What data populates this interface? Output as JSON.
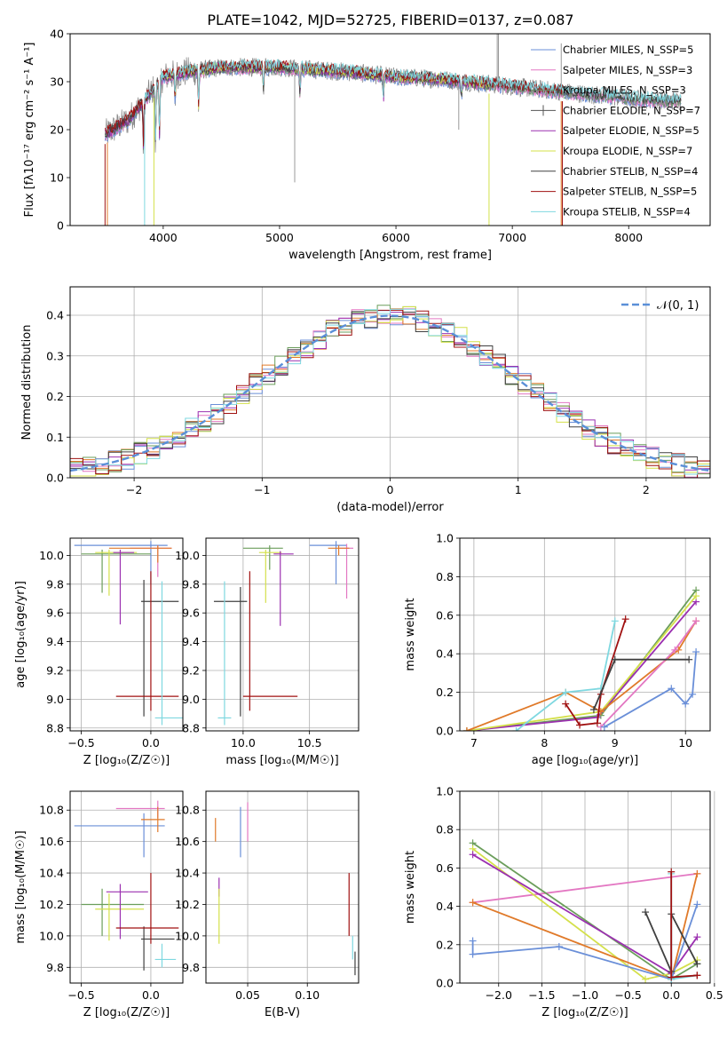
{
  "figure_title": "PLATE=1042, MJD=52725, FIBERID=0137, z=0.087",
  "colors": {
    "chabrier_miles": "#6a8fd8",
    "salpeter_miles": "#e377c2",
    "kroupa_miles": "#6b8e6b",
    "chabrier_elodie": "#555555",
    "salpeter_elodie": "#9b30b0",
    "kroupa_elodie": "#d4e04a",
    "chabrier_stelib": "#404040",
    "salpeter_stelib": "#a01010",
    "kroupa_stelib": "#7fd8e0",
    "orange": "#e07a2a",
    "green": "#6b9e5b",
    "gridline": "#b0b0b0",
    "normal_curve": "#5a8fd8"
  },
  "chart_data": [
    {
      "id": "spectrum",
      "type": "line",
      "title": "PLATE=1042, MJD=52725, FIBERID=0137, z=0.087",
      "xlabel": "wavelength [Angstrom, rest frame]",
      "ylabel": "Flux [fλ10⁻¹⁷ erg cm⁻² s⁻¹ A⁻¹]",
      "xlim": [
        3200,
        8700
      ],
      "ylim": [
        0,
        40
      ],
      "xticks": [
        4000,
        5000,
        6000,
        7000,
        8000
      ],
      "yticks": [
        0,
        10,
        20,
        30,
        40
      ],
      "grid": false,
      "legend_position": "top-right",
      "legend": [
        "Chabrier MILES, N_SSP=5",
        "Salpeter MILES, N_SSP=3",
        "Kroupa MILES, N_SSP=3",
        "Chabrier ELODIE, N_SSP=7",
        "Salpeter ELODIE, N_SSP=5",
        "Kroupa ELODIE, N_SSP=7",
        "Chabrier STELIB, N_SSP=4",
        "Salpeter STELIB, N_SSP=5",
        "Kroupa STELIB, N_SSP=4"
      ],
      "legend_keys": [
        "chabrier_miles",
        "salpeter_miles",
        "kroupa_miles",
        "chabrier_elodie",
        "salpeter_elodie",
        "kroupa_elodie",
        "chabrier_stelib",
        "salpeter_stelib",
        "kroupa_stelib"
      ],
      "continuum": {
        "x": [
          3500,
          3700,
          3900,
          4000,
          4200,
          4500,
          4800,
          5000,
          5300,
          5600,
          6000,
          6400,
          6800,
          7200,
          7600,
          8000,
          8400
        ],
        "y": [
          19,
          22,
          28,
          31,
          32,
          33,
          33,
          33,
          32.5,
          32,
          31,
          30.5,
          29.5,
          28.5,
          27.5,
          26.5,
          26
        ]
      },
      "absorption_lines": [
        {
          "x": 3830,
          "depth": 10
        },
        {
          "x": 3934,
          "depth": 14
        },
        {
          "x": 3968,
          "depth": 12
        },
        {
          "x": 4102,
          "depth": 6
        },
        {
          "x": 4304,
          "depth": 8
        },
        {
          "x": 4861,
          "depth": 5
        },
        {
          "x": 5175,
          "depth": 6
        },
        {
          "x": 5893,
          "depth": 5
        },
        {
          "x": 6563,
          "depth": 3
        }
      ]
    },
    {
      "id": "residuals",
      "type": "bar",
      "xlabel": "(data-model)/error",
      "ylabel": "Normed distribution",
      "xlim": [
        -2.5,
        2.5
      ],
      "ylim": [
        0,
        0.47
      ],
      "xticks": [
        -2,
        -1,
        0,
        1,
        2
      ],
      "yticks": [
        0.0,
        0.1,
        0.2,
        0.3,
        0.4
      ],
      "grid": true,
      "legend_position": "top-right",
      "legend": [
        "𝒩(0, 1)"
      ],
      "bin_width": 0.1
    },
    {
      "id": "age_vs_Z",
      "type": "scatter",
      "xlabel": "Z [log₁₀(Z/Z☉)]",
      "ylabel": "age  [log₁₀(age/yr)]",
      "xlim": [
        -0.58,
        0.23
      ],
      "ylim": [
        8.78,
        10.12
      ],
      "xticks": [
        -0.5,
        0.0
      ],
      "yticks": [
        8.8,
        9.0,
        9.2,
        9.4,
        9.6,
        9.8,
        10.0
      ],
      "grid": true,
      "errorbars": [
        {
          "key": "chabrier_miles",
          "x": 0.0,
          "xerr_lo": 0.55,
          "xerr_hi": 0.12,
          "y": 10.07,
          "yerr_lo": 0.27,
          "yerr_hi": 0.03
        },
        {
          "key": "salpeter_miles",
          "x": 0.05,
          "xerr_lo": 0.2,
          "xerr_hi": 0.1,
          "y": 10.05,
          "yerr_lo": 0.2,
          "yerr_hi": 0.02
        },
        {
          "key": "orange",
          "x": 0.05,
          "xerr_lo": 0.35,
          "xerr_hi": 0.1,
          "y": 10.05,
          "yerr_lo": 0.1,
          "yerr_hi": 0.02
        },
        {
          "key": "green",
          "x": -0.35,
          "xerr_lo": 0.15,
          "xerr_hi": 0.35,
          "y": 10.01,
          "yerr_lo": 0.27,
          "yerr_hi": 0.03
        },
        {
          "key": "kroupa_elodie",
          "x": -0.3,
          "xerr_lo": 0.1,
          "xerr_hi": 0.2,
          "y": 10.02,
          "yerr_lo": 0.3,
          "yerr_hi": 0.02
        },
        {
          "key": "salpeter_elodie",
          "x": -0.22,
          "xerr_lo": 0.05,
          "xerr_hi": 0.1,
          "y": 10.02,
          "yerr_lo": 0.5,
          "yerr_hi": 0.02
        },
        {
          "key": "chabrier_stelib",
          "x": -0.05,
          "xerr_lo": 0.02,
          "xerr_hi": 0.25,
          "y": 9.68,
          "yerr_lo": 0.8,
          "yerr_hi": 0.15
        },
        {
          "key": "salpeter_stelib",
          "x": 0.0,
          "xerr_lo": 0.25,
          "xerr_hi": 0.2,
          "y": 9.02,
          "yerr_lo": 0.1,
          "yerr_hi": 0.87
        },
        {
          "key": "kroupa_stelib",
          "x": 0.08,
          "xerr_lo": 0.05,
          "xerr_hi": 0.18,
          "y": 8.87,
          "yerr_lo": 0.05,
          "yerr_hi": 0.95
        }
      ]
    },
    {
      "id": "age_vs_mass",
      "type": "scatter",
      "xlabel": "mass [log₁₀(M/M☉)]",
      "ylabel": "",
      "xlim": [
        9.72,
        10.87
      ],
      "ylim": [
        8.78,
        10.12
      ],
      "xticks": [
        10.0,
        10.5
      ],
      "yticks": [
        8.8,
        9.0,
        9.2,
        9.4,
        9.6,
        9.8,
        10.0
      ],
      "grid": true,
      "errorbars": [
        {
          "key": "chabrier_miles",
          "x": 10.7,
          "xerr_lo": 0.2,
          "xerr_hi": 0.08,
          "y": 10.07,
          "yerr_lo": 0.27,
          "yerr_hi": 0.03
        },
        {
          "key": "salpeter_miles",
          "x": 10.78,
          "xerr_lo": 0.05,
          "xerr_hi": 0.05,
          "y": 10.05,
          "yerr_lo": 0.35,
          "yerr_hi": 0.03
        },
        {
          "key": "orange",
          "x": 10.72,
          "xerr_lo": 0.08,
          "xerr_hi": 0.08,
          "y": 10.05,
          "yerr_lo": 0.05,
          "yerr_hi": 0.02
        },
        {
          "key": "green",
          "x": 10.2,
          "xerr_lo": 0.2,
          "xerr_hi": 0.1,
          "y": 10.05,
          "yerr_lo": 0.15,
          "yerr_hi": 0.02
        },
        {
          "key": "kroupa_elodie",
          "x": 10.17,
          "xerr_lo": 0.05,
          "xerr_hi": 0.12,
          "y": 10.02,
          "yerr_lo": 0.35,
          "yerr_hi": 0.02
        },
        {
          "key": "salpeter_elodie",
          "x": 10.28,
          "xerr_lo": 0.05,
          "xerr_hi": 0.1,
          "y": 10.01,
          "yerr_lo": 0.5,
          "yerr_hi": 0.02
        },
        {
          "key": "chabrier_stelib",
          "x": 9.98,
          "xerr_lo": 0.2,
          "xerr_hi": 0.05,
          "y": 9.68,
          "yerr_lo": 0.8,
          "yerr_hi": 0.1
        },
        {
          "key": "salpeter_stelib",
          "x": 10.05,
          "xerr_lo": 0.05,
          "xerr_hi": 0.36,
          "y": 9.02,
          "yerr_lo": 0.1,
          "yerr_hi": 0.87
        },
        {
          "key": "kroupa_stelib",
          "x": 9.86,
          "xerr_lo": 0.05,
          "xerr_hi": 0.05,
          "y": 8.87,
          "yerr_lo": 0.05,
          "yerr_hi": 0.95
        }
      ]
    },
    {
      "id": "mass_weight_vs_age",
      "type": "line",
      "xlabel": "age  [log₁₀(age/yr)]",
      "ylabel": "mass weight",
      "xlim": [
        6.8,
        10.35
      ],
      "ylim": [
        0,
        1.0
      ],
      "xticks": [
        7,
        8,
        9,
        10
      ],
      "yticks": [
        0.0,
        0.2,
        0.4,
        0.6,
        0.8,
        1.0
      ],
      "grid": true,
      "series": [
        {
          "key": "green",
          "x": [
            6.9,
            8.8,
            10.15
          ],
          "y": [
            0.0,
            0.08,
            0.73
          ]
        },
        {
          "key": "salpeter_elodie",
          "x": [
            6.9,
            8.75,
            10.15
          ],
          "y": [
            0.0,
            0.07,
            0.67
          ]
        },
        {
          "key": "kroupa_elodie",
          "x": [
            6.9,
            8.8,
            10.15
          ],
          "y": [
            0.0,
            0.1,
            0.7
          ]
        },
        {
          "key": "orange",
          "x": [
            6.9,
            8.3,
            8.8,
            9.9,
            10.15
          ],
          "y": [
            0.0,
            0.2,
            0.1,
            0.42,
            0.57
          ]
        },
        {
          "key": "salpeter_miles",
          "x": [
            8.8,
            9.85,
            10.15
          ],
          "y": [
            0.02,
            0.42,
            0.57
          ]
        },
        {
          "key": "chabrier_miles",
          "x": [
            8.85,
            9.8,
            10.0,
            10.1,
            10.15
          ],
          "y": [
            0.02,
            0.22,
            0.14,
            0.19,
            0.41
          ]
        },
        {
          "key": "kroupa_stelib",
          "x": [
            7.6,
            8.3,
            8.8,
            9.0
          ],
          "y": [
            0.0,
            0.2,
            0.22,
            0.57
          ]
        },
        {
          "key": "salpeter_stelib",
          "x": [
            8.3,
            8.5,
            8.75,
            8.8,
            9.15
          ],
          "y": [
            0.14,
            0.03,
            0.04,
            0.19,
            0.58
          ]
        },
        {
          "key": "chabrier_stelib",
          "x": [
            8.7,
            9.0,
            10.05
          ],
          "y": [
            0.11,
            0.37,
            0.37
          ]
        }
      ]
    },
    {
      "id": "mass_vs_Z",
      "type": "scatter",
      "xlabel": "Z [log₁₀(Z/Z☉)]",
      "ylabel": "mass [log₁₀(M/M☉)]",
      "xlim": [
        -0.58,
        0.23
      ],
      "ylim": [
        9.7,
        10.92
      ],
      "xticks": [
        -0.5,
        0.0
      ],
      "yticks": [
        9.8,
        10.0,
        10.2,
        10.4,
        10.6,
        10.8
      ],
      "grid": true,
      "errorbars": [
        {
          "key": "chabrier_miles",
          "x": -0.05,
          "xerr_lo": 0.5,
          "xerr_hi": 0.15,
          "y": 10.7,
          "yerr_lo": 0.2,
          "yerr_hi": 0.08
        },
        {
          "key": "salpeter_miles",
          "x": 0.05,
          "xerr_lo": 0.3,
          "xerr_hi": 0.05,
          "y": 10.81,
          "yerr_lo": 0.06,
          "yerr_hi": 0.05
        },
        {
          "key": "orange",
          "x": 0.05,
          "xerr_lo": 0.12,
          "xerr_hi": 0.05,
          "y": 10.74,
          "yerr_lo": 0.08,
          "yerr_hi": 0.08
        },
        {
          "key": "green",
          "x": -0.35,
          "xerr_lo": 0.15,
          "xerr_hi": 0.3,
          "y": 10.2,
          "yerr_lo": 0.2,
          "yerr_hi": 0.1
        },
        {
          "key": "kroupa_elodie",
          "x": -0.3,
          "xerr_lo": 0.1,
          "xerr_hi": 0.25,
          "y": 10.17,
          "yerr_lo": 0.2,
          "yerr_hi": 0.1
        },
        {
          "key": "salpeter_elodie",
          "x": -0.22,
          "xerr_lo": 0.1,
          "xerr_hi": 0.2,
          "y": 10.28,
          "yerr_lo": 0.3,
          "yerr_hi": 0.05
        },
        {
          "key": "chabrier_stelib",
          "x": -0.05,
          "xerr_lo": 0.02,
          "xerr_hi": 0.22,
          "y": 9.98,
          "yerr_lo": 0.2,
          "yerr_hi": 0.08
        },
        {
          "key": "salpeter_stelib",
          "x": 0.0,
          "xerr_lo": 0.25,
          "xerr_hi": 0.2,
          "y": 10.05,
          "yerr_lo": 0.1,
          "yerr_hi": 0.35
        },
        {
          "key": "kroupa_stelib",
          "x": 0.08,
          "xerr_lo": 0.05,
          "xerr_hi": 0.1,
          "y": 9.85,
          "yerr_lo": 0.05,
          "yerr_hi": 0.1
        }
      ]
    },
    {
      "id": "mass_vs_EBV",
      "type": "scatter",
      "xlabel": "E(B-V)",
      "ylabel": "",
      "xlim": [
        0.015,
        0.143
      ],
      "ylim": [
        9.7,
        10.92
      ],
      "xticks": [
        0.05,
        0.1
      ],
      "xtick_labels": [
        "0.05",
        "0.10"
      ],
      "yticks": [
        9.8,
        10.0,
        10.2,
        10.4,
        10.6,
        10.8
      ],
      "grid": true,
      "errorbars": [
        {
          "key": "orange",
          "x": 0.023,
          "y": 10.7,
          "yerr_lo": 0.1,
          "yerr_hi": 0.05
        },
        {
          "key": "salpeter_elodie",
          "x": 0.026,
          "y": 10.3,
          "yerr_lo": 0.05,
          "yerr_hi": 0.07
        },
        {
          "key": "kroupa_elodie",
          "x": 0.026,
          "y": 10.15,
          "yerr_lo": 0.2,
          "yerr_hi": 0.15
        },
        {
          "key": "chabrier_miles",
          "x": 0.044,
          "y": 10.7,
          "yerr_lo": 0.2,
          "yerr_hi": 0.12
        },
        {
          "key": "salpeter_miles",
          "x": 0.05,
          "y": 10.7,
          "yerr_lo": 0.1,
          "yerr_hi": 0.15
        },
        {
          "key": "salpeter_stelib",
          "x": 0.135,
          "y": 10.2,
          "yerr_lo": 0.2,
          "yerr_hi": 0.2
        },
        {
          "key": "kroupa_stelib",
          "x": 0.138,
          "y": 9.9,
          "yerr_lo": 0.05,
          "yerr_hi": 0.1
        },
        {
          "key": "chabrier_stelib",
          "x": 0.14,
          "y": 9.85,
          "yerr_lo": 0.1,
          "yerr_hi": 0.05
        }
      ]
    },
    {
      "id": "mass_weight_vs_Z",
      "type": "line",
      "xlabel": "Z [log₁₀(Z/Z☉)]",
      "ylabel": "mass weight",
      "xlim": [
        -2.45,
        0.45
      ],
      "ylim": [
        0,
        1.0
      ],
      "xticks": [
        -2.0,
        -1.5,
        -1.0,
        -0.5,
        0.0,
        0.5
      ],
      "xtick_labels": [
        "−2.0",
        "−1.5",
        "−1.0",
        "−0.5",
        "0.0",
        "0.5"
      ],
      "yticks": [
        0.0,
        0.2,
        0.4,
        0.6,
        0.8,
        1.0
      ],
      "grid": true,
      "series": [
        {
          "key": "salpeter_miles",
          "x": [
            -2.3,
            0.3
          ],
          "y": [
            0.42,
            0.57
          ]
        },
        {
          "key": "green",
          "x": [
            -2.3,
            0.0,
            0.3
          ],
          "y": [
            0.73,
            0.02,
            0.1
          ]
        },
        {
          "key": "kroupa_elodie",
          "x": [
            -2.3,
            -0.3,
            0.0,
            0.3
          ],
          "y": [
            0.7,
            0.02,
            0.05,
            0.12
          ]
        },
        {
          "key": "salpeter_elodie",
          "x": [
            -2.3,
            0.0,
            0.3
          ],
          "y": [
            0.67,
            0.05,
            0.24
          ]
        },
        {
          "key": "orange",
          "x": [
            -2.3,
            0.0,
            0.3
          ],
          "y": [
            0.42,
            0.02,
            0.57
          ]
        },
        {
          "key": "chabrier_miles",
          "x": [
            -2.3,
            -2.3,
            -1.3,
            0.0,
            0.3
          ],
          "y": [
            0.22,
            0.15,
            0.19,
            0.02,
            0.41
          ]
        },
        {
          "key": "chabrier_stelib",
          "x": [
            -0.3,
            0.0,
            0.0,
            0.3
          ],
          "y": [
            0.37,
            0.06,
            0.36,
            0.1
          ]
        },
        {
          "key": "kroupa_stelib",
          "x": [
            0.0,
            0.0,
            0.3
          ],
          "y": [
            0.57,
            0.02,
            0.04
          ]
        },
        {
          "key": "salpeter_stelib",
          "x": [
            0.0,
            0.0,
            0.3,
            0.3
          ],
          "y": [
            0.58,
            0.03,
            0.04,
            0.04
          ]
        }
      ]
    }
  ]
}
